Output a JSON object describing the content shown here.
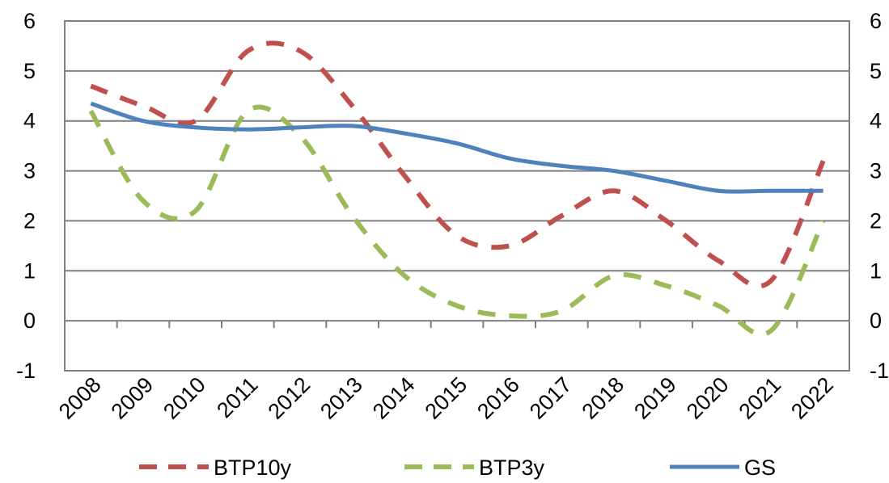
{
  "chart_data": {
    "type": "line",
    "title": "",
    "xlabel": "",
    "ylabel": "",
    "categories": [
      "2008",
      "2009",
      "2010",
      "2011",
      "2012",
      "2013",
      "2014",
      "2015",
      "2016",
      "2017",
      "2018",
      "2019",
      "2020",
      "2021",
      "2022"
    ],
    "ylim": [
      -1,
      6
    ],
    "yticks": [
      "-1",
      "0",
      "1",
      "2",
      "3",
      "4",
      "5",
      "6"
    ],
    "grid": true,
    "legend_position": "bottom",
    "series": [
      {
        "name": "BTP10y",
        "color": "#c0504d",
        "style": "dashed",
        "values": [
          4.7,
          4.3,
          4.0,
          5.4,
          5.4,
          4.3,
          2.9,
          1.7,
          1.5,
          2.1,
          2.6,
          2.0,
          1.2,
          0.8,
          3.2
        ]
      },
      {
        "name": "BTP3y",
        "color": "#9bbb59",
        "style": "dashed",
        "values": [
          4.2,
          2.4,
          2.2,
          4.2,
          3.7,
          2.1,
          0.9,
          0.3,
          0.1,
          0.2,
          0.9,
          0.7,
          0.3,
          -0.2,
          2.0
        ]
      },
      {
        "name": "GS",
        "color": "#4f81bd",
        "style": "solid",
        "values": [
          4.35,
          4.0,
          3.87,
          3.83,
          3.87,
          3.9,
          3.75,
          3.55,
          3.25,
          3.1,
          3.0,
          2.8,
          2.6,
          2.6,
          2.6
        ]
      }
    ]
  }
}
